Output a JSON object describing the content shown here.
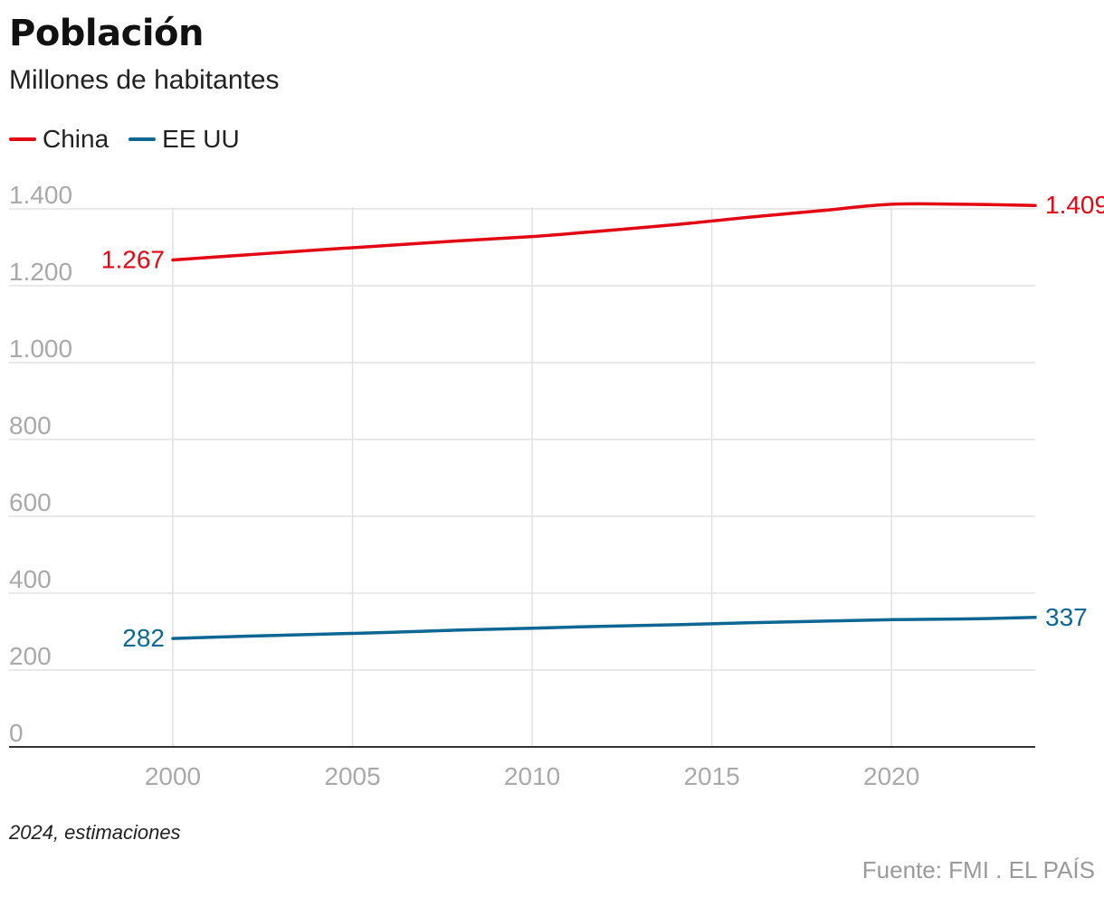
{
  "header": {
    "title": "Población",
    "subtitle": "Millones de habitantes"
  },
  "legend": [
    {
      "label": "China",
      "color": "#e30613"
    },
    {
      "label": "EE UU",
      "color": "#0e6693"
    }
  ],
  "footer": {
    "note": "2024, estimaciones",
    "source": "Fuente: FMI . EL PAÍS"
  },
  "chart_data": {
    "type": "line",
    "title": "Población",
    "subtitle": "Millones de habitantes",
    "ylim": [
      0,
      1400
    ],
    "yticks": [
      0,
      200,
      400,
      600,
      800,
      1000,
      1200,
      1400
    ],
    "ytick_labels": [
      "0",
      "200",
      "400",
      "600",
      "800",
      "1.000",
      "1.200",
      "1.400"
    ],
    "xlim": [
      2000,
      2024
    ],
    "xticks": [
      2000,
      2005,
      2010,
      2015,
      2020
    ],
    "xtick_labels": [
      "2000",
      "2005",
      "2010",
      "2015",
      "2020"
    ],
    "grid": true,
    "legend_position": "top-left",
    "series": [
      {
        "name": "China",
        "color": "#e30613",
        "x": [
          2000,
          2002,
          2004,
          2006,
          2008,
          2010,
          2012,
          2014,
          2016,
          2018,
          2020,
          2022,
          2024
        ],
        "values": [
          1267,
          1280,
          1293,
          1305,
          1317,
          1328,
          1343,
          1359,
          1378,
          1395,
          1412,
          1412,
          1409
        ],
        "start_label": "1.267",
        "end_label": "1.409"
      },
      {
        "name": "EE UU",
        "color": "#0e6693",
        "x": [
          2000,
          2002,
          2004,
          2006,
          2008,
          2010,
          2012,
          2014,
          2016,
          2018,
          2020,
          2022,
          2024
        ],
        "values": [
          282,
          288,
          293,
          298,
          304,
          309,
          314,
          318,
          323,
          327,
          331,
          333,
          337
        ],
        "start_label": "282",
        "end_label": "337"
      }
    ]
  }
}
